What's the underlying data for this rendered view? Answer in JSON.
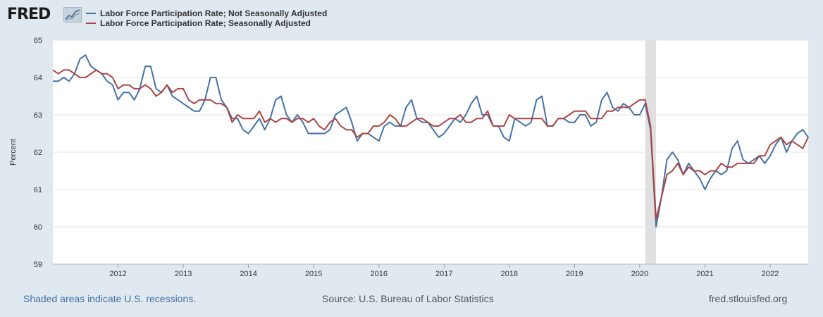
{
  "logo": {
    "text": "FRED",
    "badge_name": "chart-graph-icon"
  },
  "legend": [
    {
      "label": "Labor Force Participation Rate; Not Seasonally Adjusted",
      "color": "#4572a7"
    },
    {
      "label": "Labor Force Participation Rate; Seasonally Adjusted",
      "color": "#aa4643"
    }
  ],
  "footer": {
    "note": "Shaded areas indicate U.S. recessions.",
    "source": "Source: U.S. Bureau of Labor Statistics",
    "site": "fred.stlouisfed.org"
  },
  "chart_data": {
    "type": "line",
    "title": "",
    "xlabel": "",
    "ylabel": "Percent",
    "ylim": [
      59,
      65
    ],
    "yticks": [
      "59",
      "60",
      "61",
      "62",
      "63",
      "64",
      "65"
    ],
    "x_start": "2011-01",
    "x_end": "2022-08",
    "xtick_labels": [
      "2012",
      "2013",
      "2014",
      "2015",
      "2016",
      "2017",
      "2018",
      "2019",
      "2020",
      "2021",
      "2022"
    ],
    "recession": {
      "start": "2020-02",
      "end": "2020-04"
    },
    "grid": true,
    "series": [
      {
        "name": "Labor Force Participation Rate; Not Seasonally Adjusted",
        "color": "#4572a7",
        "values": [
          63.9,
          63.9,
          64.0,
          63.9,
          64.1,
          64.5,
          64.6,
          64.3,
          64.2,
          64.1,
          63.9,
          63.8,
          63.4,
          63.6,
          63.6,
          63.4,
          63.7,
          64.3,
          64.3,
          63.7,
          63.6,
          63.8,
          63.5,
          63.4,
          63.3,
          63.2,
          63.1,
          63.1,
          63.4,
          64.0,
          64.0,
          63.4,
          63.2,
          62.9,
          62.9,
          62.6,
          62.5,
          62.7,
          62.9,
          62.6,
          62.9,
          63.4,
          63.5,
          63.0,
          62.8,
          63.0,
          62.8,
          62.5,
          62.5,
          62.5,
          62.5,
          62.6,
          63.0,
          63.1,
          63.2,
          62.8,
          62.3,
          62.5,
          62.5,
          62.4,
          62.3,
          62.7,
          62.8,
          62.7,
          62.7,
          63.2,
          63.4,
          62.9,
          62.8,
          62.8,
          62.6,
          62.4,
          62.5,
          62.7,
          62.9,
          62.8,
          63.0,
          63.3,
          63.5,
          63.0,
          63.0,
          62.7,
          62.7,
          62.4,
          62.3,
          62.9,
          62.8,
          62.7,
          62.8,
          63.4,
          63.5,
          62.7,
          62.7,
          62.9,
          62.9,
          62.8,
          62.8,
          63.0,
          63.0,
          62.7,
          62.8,
          63.4,
          63.6,
          63.2,
          63.1,
          63.3,
          63.2,
          63.0,
          63.0,
          63.3,
          62.6,
          60.0,
          60.8,
          61.8,
          62.0,
          61.8,
          61.4,
          61.7,
          61.5,
          61.3,
          61.0,
          61.3,
          61.5,
          61.4,
          61.5,
          62.1,
          62.3,
          61.8,
          61.7,
          61.8,
          61.9,
          61.7,
          61.9,
          62.2,
          62.4,
          62.0,
          62.3,
          62.5,
          62.6,
          62.4
        ]
      },
      {
        "name": "Labor Force Participation Rate; Seasonally Adjusted",
        "color": "#aa4643",
        "values": [
          64.2,
          64.1,
          64.2,
          64.2,
          64.1,
          64.0,
          64.0,
          64.1,
          64.2,
          64.1,
          64.1,
          64.0,
          63.7,
          63.8,
          63.8,
          63.7,
          63.7,
          63.8,
          63.7,
          63.5,
          63.6,
          63.8,
          63.6,
          63.7,
          63.7,
          63.4,
          63.3,
          63.4,
          63.4,
          63.4,
          63.3,
          63.3,
          63.2,
          62.8,
          63.0,
          62.9,
          62.9,
          62.9,
          63.1,
          62.8,
          62.9,
          62.8,
          62.9,
          62.9,
          62.8,
          62.9,
          62.9,
          62.8,
          62.9,
          62.7,
          62.6,
          62.8,
          62.9,
          62.7,
          62.6,
          62.6,
          62.4,
          62.5,
          62.5,
          62.7,
          62.7,
          62.8,
          63.0,
          62.9,
          62.7,
          62.7,
          62.8,
          62.9,
          62.9,
          62.8,
          62.7,
          62.7,
          62.8,
          62.9,
          62.9,
          63.0,
          62.8,
          62.8,
          62.9,
          62.9,
          63.1,
          62.7,
          62.7,
          62.7,
          63.0,
          62.9,
          62.9,
          62.9,
          62.9,
          62.9,
          62.9,
          62.7,
          62.7,
          62.9,
          62.9,
          63.0,
          63.1,
          63.1,
          63.1,
          62.9,
          62.9,
          62.9,
          63.1,
          63.1,
          63.2,
          63.2,
          63.2,
          63.3,
          63.4,
          63.4,
          62.7,
          60.2,
          60.8,
          61.4,
          61.5,
          61.7,
          61.4,
          61.6,
          61.5,
          61.5,
          61.4,
          61.5,
          61.5,
          61.7,
          61.6,
          61.6,
          61.7,
          61.7,
          61.7,
          61.7,
          61.9,
          61.9,
          62.2,
          62.3,
          62.4,
          62.2,
          62.3,
          62.2,
          62.1,
          62.4
        ]
      }
    ]
  }
}
